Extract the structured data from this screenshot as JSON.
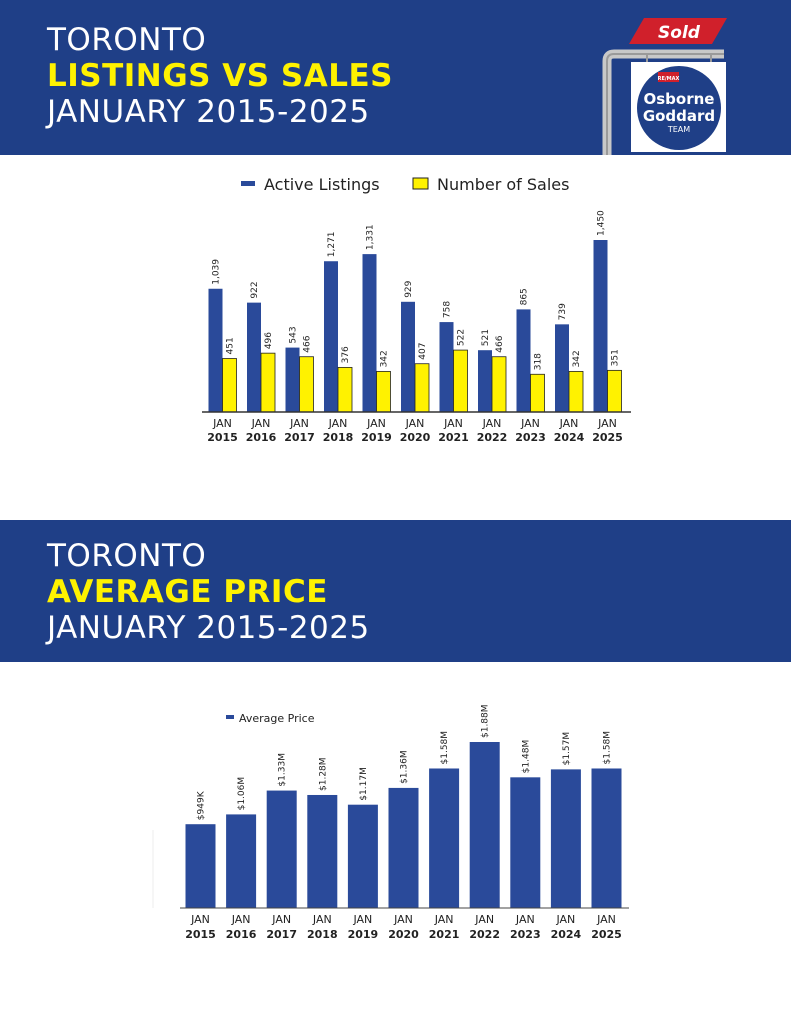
{
  "header1": {
    "line1": "TORONTO",
    "line2": "LISTINGS VS SALES",
    "line3": "JANUARY 2015-2025"
  },
  "header2": {
    "line1": "TORONTO",
    "line2": "AVERAGE PRICE",
    "line3": "JANUARY 2015-2025"
  },
  "logo": {
    "sold": "Sold",
    "brand": "RE/MAX",
    "name1": "Osborne",
    "name2": "Goddard",
    "team": "TEAM"
  },
  "colors": {
    "navy": "#1f3f87",
    "bar_blue": "#2a4a9a",
    "yellow": "#fff200"
  },
  "chart_data": [
    {
      "type": "bar",
      "title": "",
      "legend_position": "top",
      "categories": [
        "JAN 2015",
        "JAN 2016",
        "JAN 2017",
        "JAN 2018",
        "JAN 2019",
        "JAN 2020",
        "JAN 2021",
        "JAN 2022",
        "JAN 2023",
        "JAN 2024",
        "JAN 2025"
      ],
      "category_lines": [
        [
          "JAN",
          "2015"
        ],
        [
          "JAN",
          "2016"
        ],
        [
          "JAN",
          "2017"
        ],
        [
          "JAN",
          "2018"
        ],
        [
          "JAN",
          "2019"
        ],
        [
          "JAN",
          "2020"
        ],
        [
          "JAN",
          "2021"
        ],
        [
          "JAN",
          "2022"
        ],
        [
          "JAN",
          "2023"
        ],
        [
          "JAN",
          "2024"
        ],
        [
          "JAN",
          "2025"
        ]
      ],
      "series": [
        {
          "name": "Active Listings",
          "color": "#2a4a9a",
          "values": [
            1039,
            922,
            543,
            1271,
            1331,
            929,
            758,
            521,
            865,
            739,
            1450
          ],
          "labels": [
            "1,039",
            "922",
            "543",
            "1,271",
            "1,331",
            "929",
            "758",
            "521",
            "865",
            "739",
            "1,450"
          ]
        },
        {
          "name": "Number of Sales",
          "color": "#fff200",
          "values": [
            451,
            496,
            466,
            376,
            342,
            407,
            522,
            466,
            318,
            342,
            351
          ],
          "labels": [
            "451",
            "496",
            "466",
            "376",
            "342",
            "407",
            "522",
            "466",
            "318",
            "342",
            "351"
          ]
        }
      ],
      "ylim": [
        0,
        1450
      ]
    },
    {
      "type": "bar",
      "title": "",
      "legend_position": "top-left",
      "categories": [
        "JAN 2015",
        "JAN 2016",
        "JAN 2017",
        "JAN 2018",
        "JAN 2019",
        "JAN 2020",
        "JAN 2021",
        "JAN 2022",
        "JAN 2023",
        "JAN 2024",
        "JAN 2025"
      ],
      "category_lines": [
        [
          "JAN",
          "2015"
        ],
        [
          "JAN",
          "2016"
        ],
        [
          "JAN",
          "2017"
        ],
        [
          "JAN",
          "2018"
        ],
        [
          "JAN",
          "2019"
        ],
        [
          "JAN",
          "2020"
        ],
        [
          "JAN",
          "2021"
        ],
        [
          "JAN",
          "2022"
        ],
        [
          "JAN",
          "2023"
        ],
        [
          "JAN",
          "2024"
        ],
        [
          "JAN",
          "2025"
        ]
      ],
      "series": [
        {
          "name": "Average Price",
          "color": "#2a4a9a",
          "values": [
            949000,
            1060000,
            1330000,
            1280000,
            1170000,
            1360000,
            1580000,
            1880000,
            1480000,
            1570000,
            1580000
          ],
          "labels": [
            "$949K",
            "$1.06M",
            "$1.33M",
            "$1.28M",
            "$1.17M",
            "$1.36M",
            "$1.58M",
            "$1.88M",
            "$1.48M",
            "$1.57M",
            "$1.58M"
          ]
        }
      ],
      "ylim": [
        0,
        1880000
      ]
    }
  ]
}
